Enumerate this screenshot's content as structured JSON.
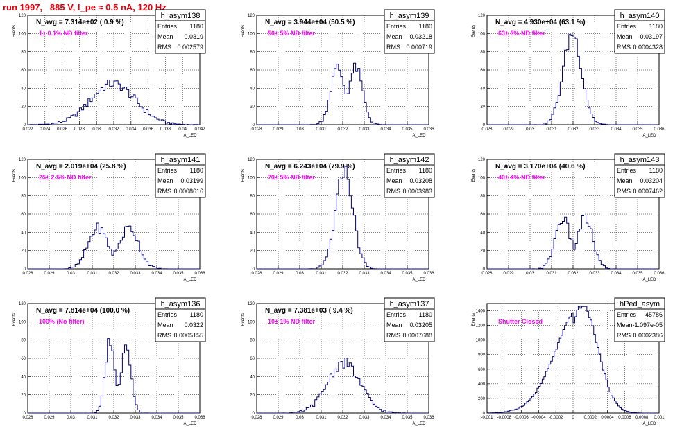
{
  "page": {
    "run_title": "run 1997,   885 V, I_pe ≈ 0.5 nA, 120 Hz"
  },
  "colors": {
    "hist_line": "#00007f",
    "note_text": "#ff00ff",
    "run_title": "#e8000b"
  },
  "stats_labels": [
    "Entries",
    "Mean",
    "RMS"
  ],
  "ylabel": "Events",
  "xlabel": "A_LED",
  "chart_data": [
    {
      "type": "histogram",
      "title": "h_asym138",
      "stats": {
        "Entries": "1180",
        "Mean": "0.0319",
        "RMS": "0.002579"
      },
      "navg": "N_avg = 7.314e+02 ( 0.9 %)",
      "note": "1± 0.1% ND filter",
      "xlim": [
        0.022,
        0.042
      ],
      "ylim": [
        0,
        120
      ],
      "xticks": [
        "0.022",
        "0.024",
        "0.026",
        "0.028",
        "0.03",
        "0.032",
        "0.034",
        "0.036",
        "0.038",
        "0.04",
        "0.042"
      ],
      "yticks": [
        "0",
        "20",
        "40",
        "60",
        "80",
        "100",
        "120"
      ],
      "shape": {
        "mode": "gauss",
        "mean": 0.0319,
        "sigma": 0.0026,
        "peak": 45,
        "bins": 80
      }
    },
    {
      "type": "histogram",
      "title": "h_asym139",
      "stats": {
        "Entries": "1180",
        "Mean": "0.03218",
        "RMS": "0.000719"
      },
      "navg": "N_avg = 3.944e+04 (50.5 %)",
      "note": "50± 5% ND filter",
      "xlim": [
        0.028,
        0.036
      ],
      "ylim": [
        0,
        120
      ],
      "xticks": [
        "0.028",
        "0.029",
        "0.03",
        "0.031",
        "0.032",
        "0.033",
        "0.034",
        "0.035",
        "0.036"
      ],
      "yticks": [
        "0",
        "20",
        "40",
        "60",
        "80",
        "100",
        "120"
      ],
      "shape": {
        "mode": "double",
        "mean": 0.03218,
        "sep": 0.00085,
        "sigma": 0.00032,
        "peak": 62,
        "bins": 80
      }
    },
    {
      "type": "histogram",
      "title": "h_asym140",
      "stats": {
        "Entries": "1180",
        "Mean": "0.03197",
        "RMS": "0.0004328"
      },
      "navg": "N_avg = 4.930e+04 (63.1 %)",
      "note": "63± 5% ND filter",
      "xlim": [
        0.028,
        0.036
      ],
      "ylim": [
        0,
        120
      ],
      "xticks": [
        "0.028",
        "0.029",
        "0.03",
        "0.031",
        "0.032",
        "0.033",
        "0.034",
        "0.035",
        "0.036"
      ],
      "yticks": [
        "0",
        "20",
        "40",
        "60",
        "80",
        "100",
        "120"
      ],
      "shape": {
        "mode": "gauss",
        "mean": 0.03197,
        "sigma": 0.00043,
        "peak": 100,
        "bins": 80
      }
    },
    {
      "type": "histogram",
      "title": "h_asym141",
      "stats": {
        "Entries": "1180",
        "Mean": "0.03199",
        "RMS": "0.0008616"
      },
      "navg": "N_avg = 2.019e+04 (25.8 %)",
      "note": "25± 2.5% ND filter",
      "xlim": [
        0.028,
        0.036
      ],
      "ylim": [
        0,
        120
      ],
      "xticks": [
        "0.028",
        "0.029",
        "0.03",
        "0.031",
        "0.032",
        "0.033",
        "0.034",
        "0.035",
        "0.036"
      ],
      "yticks": [
        "0",
        "20",
        "40",
        "60",
        "80",
        "100",
        "120"
      ],
      "shape": {
        "mode": "double",
        "mean": 0.03199,
        "sep": 0.00145,
        "sigma": 0.00045,
        "peak": 45,
        "bins": 80
      }
    },
    {
      "type": "histogram",
      "title": "h_asym142",
      "stats": {
        "Entries": "1180",
        "Mean": "0.03208",
        "RMS": "0.0003983"
      },
      "navg": "N_avg = 6.243e+04 (79.9 %)",
      "note": "79± 5% ND filter",
      "xlim": [
        0.028,
        0.036
      ],
      "ylim": [
        0,
        120
      ],
      "xticks": [
        "0.028",
        "0.029",
        "0.03",
        "0.031",
        "0.032",
        "0.033",
        "0.034",
        "0.035",
        "0.036"
      ],
      "yticks": [
        "0",
        "20",
        "40",
        "60",
        "80",
        "100",
        "120"
      ],
      "shape": {
        "mode": "gauss",
        "mean": 0.03208,
        "sigma": 0.0004,
        "peak": 108,
        "bins": 80
      }
    },
    {
      "type": "histogram",
      "title": "h_asym143",
      "stats": {
        "Entries": "1180",
        "Mean": "0.03204",
        "RMS": "0.0007462"
      },
      "navg": "N_avg = 3.170e+04 (40.6 %)",
      "note": "40± 4% ND filter",
      "xlim": [
        0.028,
        0.036
      ],
      "ylim": [
        0,
        120
      ],
      "xticks": [
        "0.028",
        "0.029",
        "0.03",
        "0.031",
        "0.032",
        "0.033",
        "0.034",
        "0.035",
        "0.036"
      ],
      "yticks": [
        "0",
        "20",
        "40",
        "60",
        "80",
        "100",
        "120"
      ],
      "shape": {
        "mode": "double",
        "mean": 0.03204,
        "sep": 0.00105,
        "sigma": 0.00035,
        "peak": 55,
        "bins": 80
      }
    },
    {
      "type": "histogram",
      "title": "h_asym136",
      "stats": {
        "Entries": "1180",
        "Mean": "0.0322",
        "RMS": "0.0005155"
      },
      "navg": "N_avg = 7.814e+04 (100.0 %)",
      "note": "100% (No filter)",
      "xlim": [
        0.028,
        0.036
      ],
      "ylim": [
        0,
        120
      ],
      "xticks": [
        "0.028",
        "0.029",
        "0.03",
        "0.031",
        "0.032",
        "0.033",
        "0.034",
        "0.035",
        "0.036"
      ],
      "yticks": [
        "0",
        "20",
        "40",
        "60",
        "80",
        "100",
        "120"
      ],
      "shape": {
        "mode": "double",
        "mean": 0.0322,
        "sep": 0.00075,
        "sigma": 0.00022,
        "peak": 80,
        "bins": 80
      }
    },
    {
      "type": "histogram",
      "title": "h_asym137",
      "stats": {
        "Entries": "1180",
        "Mean": "0.03205",
        "RMS": "0.0007688"
      },
      "navg": "N_avg = 7.381e+03 ( 9.4 %)",
      "note": "10± 1% ND filter",
      "xlim": [
        0.028,
        0.036
      ],
      "ylim": [
        0,
        120
      ],
      "xticks": [
        "0.028",
        "0.029",
        "0.03",
        "0.031",
        "0.032",
        "0.033",
        "0.034",
        "0.035",
        "0.036"
      ],
      "yticks": [
        "0",
        "20",
        "40",
        "60",
        "80",
        "100",
        "120"
      ],
      "shape": {
        "mode": "gauss",
        "mean": 0.03205,
        "sigma": 0.00075,
        "peak": 55,
        "bins": 80
      }
    },
    {
      "type": "histogram",
      "title": "hPed_asym",
      "stats": {
        "Entries": "45786",
        "Mean": "-1.097e-05",
        "RMS": "0.0002386"
      },
      "navg": "",
      "note": "Shutter Closed",
      "xlim": [
        -0.001,
        0.001
      ],
      "ylim": [
        0,
        1500
      ],
      "xticks": [
        "-0.001",
        "-0.0008",
        "-0.0006",
        "-0.0004",
        "-0.0002",
        "0",
        "0.0002",
        "0.0004",
        "0.0006",
        "0.0008",
        "0.001"
      ],
      "yticks": [
        "0",
        "200",
        "400",
        "600",
        "800",
        "1000",
        "1200",
        "1400"
      ],
      "shape": {
        "mode": "skew",
        "mean": -1e-05,
        "sigma": 0.00024,
        "peak": 1470,
        "bins": 100
      }
    }
  ]
}
